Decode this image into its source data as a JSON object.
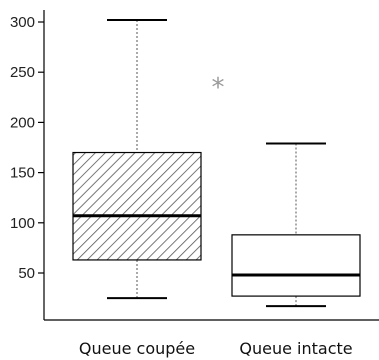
{
  "chart_data": {
    "type": "boxplot",
    "categories": [
      "Queue coupée",
      "Queue intacte"
    ],
    "boxes": [
      {
        "category": "Queue coupée",
        "whisker_low": 25,
        "q1": 63,
        "median": 107,
        "q3": 170,
        "whisker_high": 302,
        "fill": "hatched"
      },
      {
        "category": "Queue intacte",
        "whisker_low": 17,
        "q1": 27,
        "median": 48,
        "q3": 88,
        "whisker_high": 179,
        "fill": "white"
      }
    ],
    "annotation": "*",
    "yticks": [
      50,
      100,
      150,
      200,
      250,
      300
    ],
    "ylim": [
      0,
      320
    ],
    "xlabel": "",
    "ylabel": "",
    "title": "",
    "grid": false,
    "colors": {
      "line": "#000000",
      "whisker": "#555555",
      "star": "#9a9a9a"
    }
  }
}
